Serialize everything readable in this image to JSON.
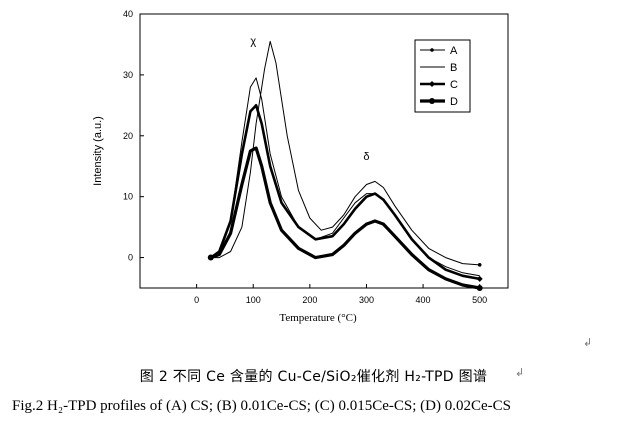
{
  "chart_data": {
    "type": "line",
    "title": "",
    "xlabel": "Temperature",
    "xunit": "(°C)",
    "ylabel": "Intensity (a.u.)",
    "xlim": [
      -100,
      550
    ],
    "ylim": [
      -5,
      40
    ],
    "xticks": [
      0,
      100,
      200,
      300,
      400,
      500
    ],
    "yticks": [
      0,
      10,
      20,
      30,
      40
    ],
    "grid": false,
    "legend_position": "top-right",
    "annotations": [
      {
        "text": "χ",
        "x": 100,
        "y": 35
      },
      {
        "text": "δ",
        "x": 300,
        "y": 16
      }
    ],
    "series": [
      {
        "name": "A",
        "x": [
          25,
          40,
          60,
          80,
          95,
          105,
          120,
          130,
          140,
          160,
          180,
          200,
          220,
          240,
          260,
          280,
          300,
          315,
          330,
          350,
          380,
          410,
          440,
          470,
          500
        ],
        "y": [
          0,
          0,
          1,
          5,
          14,
          22,
          31,
          35.5,
          32,
          20,
          11,
          6.5,
          4.5,
          5,
          7,
          10,
          12,
          12.5,
          11.5,
          8.5,
          4.5,
          1.5,
          0,
          -1,
          -1.2
        ]
      },
      {
        "name": "B",
        "x": [
          25,
          40,
          60,
          80,
          95,
          105,
          115,
          130,
          150,
          180,
          210,
          240,
          260,
          280,
          300,
          315,
          330,
          350,
          380,
          410,
          440,
          470,
          500
        ],
        "y": [
          0,
          1,
          6,
          19,
          28,
          29.5,
          26,
          17,
          10,
          5,
          3,
          4,
          6.5,
          9,
          10.5,
          10.5,
          9.5,
          7,
          3,
          0,
          -1.5,
          -2.5,
          -3
        ]
      },
      {
        "name": "C",
        "x": [
          25,
          40,
          60,
          80,
          95,
          105,
          115,
          130,
          150,
          180,
          210,
          240,
          260,
          280,
          300,
          315,
          330,
          350,
          380,
          410,
          440,
          470,
          500
        ],
        "y": [
          0,
          1,
          6,
          17,
          24,
          25,
          22,
          15,
          9,
          5,
          3,
          3.5,
          5.5,
          8,
          10,
          10.5,
          9.5,
          7,
          3,
          0,
          -2,
          -3,
          -3.5
        ]
      },
      {
        "name": "D",
        "x": [
          25,
          40,
          60,
          80,
          95,
          105,
          115,
          130,
          150,
          180,
          210,
          240,
          260,
          280,
          300,
          315,
          330,
          350,
          380,
          410,
          440,
          470,
          500
        ],
        "y": [
          0,
          0.5,
          4,
          12,
          17.5,
          18,
          15,
          9,
          4.5,
          1.5,
          0,
          0.5,
          2,
          4,
          5.5,
          6,
          5.5,
          3.5,
          0.5,
          -2,
          -3.5,
          -4.5,
          -5
        ]
      }
    ]
  },
  "caption": {
    "cn": "图 2  不同 Ce 含量的 Cu-Ce/SiO₂催化剂 H₂-TPD 图谱",
    "en": "Fig.2 H₂-TPD profiles of (A) CS; (B) 0.01Ce-CS; (C) 0.015Ce-CS; (D) 0.02Ce-CS"
  }
}
